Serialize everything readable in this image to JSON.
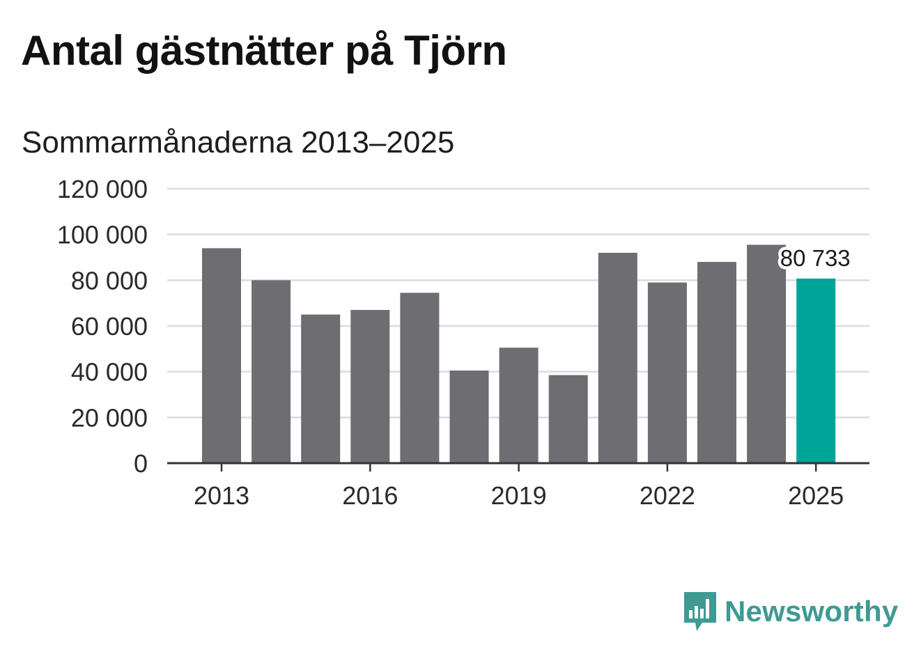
{
  "title": "Antal gästnätter på Tjörn",
  "subtitle": "Sommarmånaderna 2013–2025",
  "brand": {
    "name": "Newsworthy",
    "icon": "newsworthy-logo-icon",
    "color": "#3f9a92"
  },
  "colors": {
    "bar": "#6e6d72",
    "highlight": "#00a599",
    "grid": "#dcdcdc",
    "axis": "#333333"
  },
  "chart_data": {
    "type": "bar",
    "categories": [
      "2013",
      "2014",
      "2015",
      "2016",
      "2017",
      "2018",
      "2019",
      "2020",
      "2021",
      "2022",
      "2023",
      "2024",
      "2025"
    ],
    "values": [
      94000,
      80000,
      65000,
      67000,
      74500,
      40500,
      50500,
      38500,
      92000,
      79000,
      88000,
      95500,
      80733
    ],
    "highlight_index": 12,
    "highlight_label": "80 733",
    "title": "Antal gästnätter på Tjörn",
    "subtitle": "Sommarmånaderna 2013–2025",
    "xlabel": "",
    "ylabel": "",
    "ylim": [
      0,
      120000
    ],
    "yticks": [
      0,
      20000,
      40000,
      60000,
      80000,
      100000,
      120000
    ],
    "ytick_labels": [
      "0",
      "20 000",
      "40 000",
      "60 000",
      "80 000",
      "100 000",
      "120 000"
    ],
    "xtick_labels": [
      "2013",
      "2016",
      "2019",
      "2022",
      "2025"
    ],
    "grid": true,
    "legend": "none"
  }
}
